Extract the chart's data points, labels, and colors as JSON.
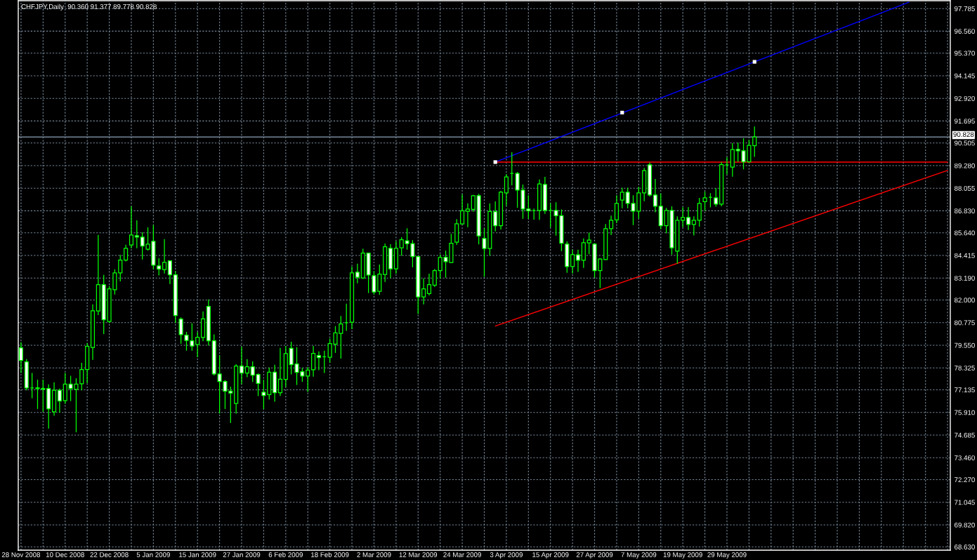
{
  "chart_data": {
    "type": "candlestick",
    "title": "CHFJPY,Daily  90.360 91.377 89.778 90.828",
    "categories": [
      "28 Nov 2008",
      null,
      null,
      null,
      null,
      null,
      null,
      null,
      "10 Dec 2008",
      null,
      null,
      null,
      null,
      null,
      null,
      null,
      "22 Dec 2008",
      null,
      null,
      null,
      null,
      null,
      null,
      null,
      "5 Jan 2009",
      null,
      null,
      null,
      null,
      null,
      null,
      null,
      "15 Jan 2009",
      null,
      null,
      null,
      null,
      null,
      null,
      null,
      "27 Jan 2009",
      null,
      null,
      null,
      null,
      null,
      null,
      null,
      "6 Feb 2009",
      null,
      null,
      null,
      null,
      null,
      null,
      null,
      "18 Feb 2009",
      null,
      null,
      null,
      null,
      null,
      null,
      null,
      "2 Mar 2009",
      null,
      null,
      null,
      null,
      null,
      null,
      null,
      "12 Mar 2009",
      null,
      null,
      null,
      null,
      null,
      null,
      null,
      "24 Mar 2009",
      null,
      null,
      null,
      null,
      null,
      null,
      null,
      "3 Apr 2009",
      null,
      null,
      null,
      null,
      null,
      null,
      null,
      "15 Apr 2009",
      null,
      null,
      null,
      null,
      null,
      null,
      null,
      "27 Apr 2009",
      null,
      null,
      null,
      null,
      null,
      null,
      null,
      "7 May 2009",
      null,
      null,
      null,
      null,
      null,
      null,
      null,
      "19 May 2009",
      null,
      null,
      null,
      null,
      null,
      null,
      null,
      "29 May 2009",
      null,
      null,
      null,
      null,
      null,
      null,
      null,
      null,
      null,
      null,
      null,
      null,
      null,
      null,
      null,
      null,
      null,
      null,
      null,
      null,
      null,
      null,
      null,
      null,
      null,
      null,
      null,
      null,
      null,
      null,
      null,
      null,
      null,
      null,
      null,
      null,
      null,
      null,
      null,
      null
    ],
    "ohlc": [
      [
        79.41,
        79.69,
        78.07,
        78.73
      ],
      [
        78.65,
        78.77,
        77.13,
        77.23
      ],
      [
        77.23,
        78.02,
        76.7,
        77.23
      ],
      [
        77.24,
        77.66,
        76.12,
        77.2
      ],
      [
        77.21,
        77.66,
        75.97,
        77.17
      ],
      [
        77.21,
        77.41,
        75.06,
        76.1
      ],
      [
        75.94,
        77.52,
        75.75,
        77.11
      ],
      [
        77.11,
        77.18,
        75.92,
        76.53
      ],
      [
        76.55,
        78.02,
        76.4,
        77.44
      ],
      [
        77.44,
        77.87,
        76.55,
        77.21
      ],
      [
        77.16,
        77.74,
        74.86,
        77.44
      ],
      [
        77.46,
        78.57,
        77.13,
        78.23
      ],
      [
        78.23,
        79.64,
        77.52,
        79.49
      ],
      [
        79.43,
        81.74,
        78.78,
        81.42
      ],
      [
        81.41,
        85.5,
        81.21,
        82.83
      ],
      [
        82.83,
        83.33,
        80.18,
        80.93
      ],
      [
        80.84,
        82.73,
        80.78,
        82.6
      ],
      [
        82.56,
        83.64,
        82.32,
        83.47
      ],
      [
        83.47,
        84.42,
        83.03,
        84.16
      ],
      [
        84.16,
        84.97,
        84.11,
        84.8
      ],
      [
        84.98,
        87.05,
        84.83,
        85.52
      ],
      [
        85.48,
        86.29,
        84.83,
        85.41
      ],
      [
        85.41,
        85.64,
        84.22,
        84.92
      ],
      [
        84.75,
        85.91,
        84.7,
        85.03
      ],
      [
        85.18,
        86.04,
        83.69,
        83.89
      ],
      [
        83.85,
        84.24,
        83.35,
        83.68
      ],
      [
        83.65,
        85.27,
        83.46,
        84.04
      ],
      [
        84.12,
        84.12,
        82.89,
        83.36
      ],
      [
        83.36,
        83.54,
        80.78,
        81.16
      ],
      [
        80.97,
        81.04,
        79.66,
        80.12
      ],
      [
        80.09,
        80.25,
        79.28,
        79.81
      ],
      [
        79.79,
        80.71,
        79.28,
        79.51
      ],
      [
        79.59,
        80.25,
        78.93,
        79.98
      ],
      [
        79.97,
        81.36,
        79.79,
        80.98
      ],
      [
        81.65,
        82.0,
        79.56,
        79.79
      ],
      [
        79.79,
        80.11,
        77.94,
        77.99
      ],
      [
        77.99,
        78.98,
        75.87,
        77.59
      ],
      [
        77.59,
        77.64,
        76.12,
        77.06
      ],
      [
        77.06,
        77.28,
        75.36,
        76.96
      ],
      [
        76.4,
        78.5,
        75.87,
        78.42
      ],
      [
        78.42,
        79.45,
        77.46,
        78.04
      ],
      [
        78.04,
        78.77,
        77.84,
        78.38
      ],
      [
        78.38,
        78.65,
        77.59,
        77.93
      ],
      [
        77.97,
        78.0,
        76.82,
        77.48
      ],
      [
        77.01,
        77.66,
        76.12,
        76.83
      ],
      [
        76.87,
        78.32,
        76.64,
        78.09
      ],
      [
        78.09,
        78.47,
        76.51,
        76.98
      ],
      [
        76.98,
        79.38,
        76.83,
        77.71
      ],
      [
        77.7,
        79.49,
        77.31,
        79.1
      ],
      [
        79.38,
        79.71,
        77.99,
        78.5
      ],
      [
        78.54,
        79.42,
        77.42,
        78.08
      ],
      [
        78.12,
        78.31,
        77.59,
        77.88
      ],
      [
        77.88,
        78.35,
        77.04,
        78.2
      ],
      [
        78.22,
        79.49,
        77.87,
        79.11
      ],
      [
        78.99,
        79.19,
        78.22,
        78.88
      ],
      [
        78.93,
        79.23,
        78.07,
        78.93
      ],
      [
        78.9,
        79.89,
        78.63,
        79.64
      ],
      [
        79.61,
        80.56,
        79.16,
        80.22
      ],
      [
        80.19,
        81.11,
        78.85,
        80.7
      ],
      [
        80.77,
        81.78,
        80.35,
        80.77
      ],
      [
        80.8,
        83.79,
        80.45,
        83.47
      ],
      [
        83.51,
        83.94,
        82.93,
        83.23
      ],
      [
        83.19,
        84.75,
        83.16,
        84.54
      ],
      [
        84.54,
        84.54,
        82.4,
        83.35
      ],
      [
        83.32,
        83.54,
        82.31,
        82.43
      ],
      [
        82.47,
        83.9,
        82.31,
        83.4
      ],
      [
        83.38,
        85.04,
        83.0,
        84.88
      ],
      [
        84.8,
        85.0,
        83.21,
        83.69
      ],
      [
        83.69,
        85.16,
        83.45,
        84.8
      ],
      [
        84.83,
        85.38,
        84.42,
        85.26
      ],
      [
        85.21,
        85.86,
        84.75,
        85.05
      ],
      [
        85.05,
        85.22,
        83.79,
        84.35
      ],
      [
        84.35,
        84.37,
        81.26,
        82.17
      ],
      [
        82.17,
        83.14,
        81.79,
        82.6
      ],
      [
        82.35,
        83.4,
        82.27,
        82.83
      ],
      [
        82.8,
        83.66,
        82.73,
        83.59
      ],
      [
        83.59,
        84.45,
        83.18,
        84.3
      ],
      [
        84.31,
        84.65,
        83.23,
        84.08
      ],
      [
        84.03,
        85.56,
        84.03,
        85.07
      ],
      [
        85.13,
        86.36,
        85.01,
        86.13
      ],
      [
        86.12,
        87.7,
        86.12,
        86.83
      ],
      [
        86.8,
        87.21,
        85.97,
        86.93
      ],
      [
        86.91,
        87.67,
        86.8,
        87.65
      ],
      [
        87.65,
        87.72,
        85.04,
        85.47
      ],
      [
        85.33,
        85.86,
        83.28,
        84.79
      ],
      [
        84.79,
        87.21,
        84.42,
        86.79
      ],
      [
        86.78,
        87.32,
        85.74,
        86.02
      ],
      [
        86.02,
        87.89,
        85.84,
        87.84
      ],
      [
        87.8,
        88.79,
        87.13,
        88.67
      ],
      [
        88.86,
        89.98,
        88.24,
        88.86
      ],
      [
        88.86,
        88.91,
        87.02,
        87.95
      ],
      [
        87.95,
        88.23,
        86.42,
        86.93
      ],
      [
        86.93,
        87.65,
        86.42,
        86.83
      ],
      [
        86.84,
        86.93,
        86.38,
        86.84
      ],
      [
        86.85,
        88.5,
        86.37,
        88.29
      ],
      [
        88.26,
        88.65,
        86.69,
        86.85
      ],
      [
        86.85,
        87.21,
        85.96,
        86.85
      ],
      [
        86.85,
        87.27,
        85.51,
        86.57
      ],
      [
        86.57,
        86.88,
        84.67,
        85.07
      ],
      [
        85.03,
        85.15,
        83.5,
        83.81
      ],
      [
        83.81,
        84.7,
        83.46,
        84.46
      ],
      [
        84.45,
        84.7,
        83.54,
        84.15
      ],
      [
        84.15,
        85.31,
        83.76,
        85.1
      ],
      [
        85.09,
        85.62,
        84.5,
        85.24
      ],
      [
        85.03,
        85.05,
        83.24,
        83.59
      ],
      [
        83.59,
        84.24,
        82.67,
        84.22
      ],
      [
        84.19,
        86.09,
        84.19,
        85.86
      ],
      [
        85.86,
        86.55,
        85.54,
        86.32
      ],
      [
        86.34,
        87.65,
        86.19,
        87.23
      ],
      [
        87.41,
        88.06,
        86.99,
        87.84
      ],
      [
        87.84,
        88.06,
        86.99,
        87.23
      ],
      [
        87.23,
        87.65,
        86.08,
        86.81
      ],
      [
        86.81,
        88.1,
        86.43,
        87.8
      ],
      [
        87.8,
        89.13,
        87.37,
        89.01
      ],
      [
        89.32,
        89.43,
        87.63,
        87.69
      ],
      [
        87.69,
        88.53,
        86.77,
        87.08
      ],
      [
        87.08,
        87.74,
        85.86,
        86.02
      ],
      [
        86.02,
        86.96,
        85.64,
        86.85
      ],
      [
        86.85,
        87.05,
        84.48,
        84.83
      ],
      [
        84.65,
        86.51,
        83.99,
        86.32
      ],
      [
        86.32,
        87.0,
        85.96,
        86.47
      ],
      [
        86.47,
        87.0,
        85.81,
        86.09
      ],
      [
        86.09,
        86.51,
        85.52,
        86.32
      ],
      [
        86.32,
        87.51,
        86.0,
        87.23
      ],
      [
        87.33,
        87.84,
        86.85,
        87.53
      ],
      [
        87.56,
        87.76,
        87.04,
        87.56
      ],
      [
        87.53,
        88.03,
        87.08,
        87.19
      ],
      [
        87.19,
        89.44,
        87.1,
        89.33
      ],
      [
        89.32,
        89.71,
        88.82,
        89.32
      ],
      [
        89.2,
        90.47,
        88.7,
        90.15
      ],
      [
        90.16,
        90.5,
        89.51,
        90.08
      ],
      [
        90.08,
        90.74,
        89.1,
        89.48
      ],
      [
        89.48,
        90.65,
        89.48,
        90.38
      ],
      [
        90.36,
        91.377,
        89.778,
        90.828
      ],
      null,
      null,
      null,
      null,
      null,
      null,
      null,
      null,
      null,
      null,
      null,
      null,
      null,
      null,
      null,
      null,
      null,
      null,
      null,
      null,
      null,
      null,
      null,
      null,
      null,
      null,
      null,
      null,
      null,
      null,
      null,
      null,
      null,
      null,
      null
    ],
    "color": "#00ff00",
    "colors": [
      "#ffffff",
      "#ffffff",
      "#00ff00",
      "#ffffff",
      "#ffffff",
      "#ffffff",
      "#000000",
      "#ffffff",
      "#000000",
      "#ffffff",
      "#000000",
      "#000000",
      "#000000",
      "#000000",
      "#000000",
      "#ffffff",
      "#000000",
      "#000000",
      "#000000",
      "#000000",
      "#000000",
      "#ffffff",
      "#ffffff",
      "#000000",
      "#ffffff",
      "#ffffff",
      "#000000",
      "#ffffff",
      "#ffffff",
      "#ffffff",
      "#ffffff",
      "#ffffff",
      "#000000",
      "#000000",
      "#ffffff",
      "#ffffff",
      "#ffffff",
      "#ffffff",
      "#ffffff",
      "#000000",
      "#ffffff",
      "#000000",
      "#ffffff",
      "#ffffff",
      "#ffffff",
      "#000000",
      "#ffffff",
      "#000000",
      "#000000",
      "#ffffff",
      "#ffffff",
      "#ffffff",
      "#000000",
      "#000000",
      "#ffffff",
      "#00ff00",
      "#000000",
      "#000000",
      "#000000",
      "#00ff00",
      "#000000",
      "#ffffff",
      "#000000",
      "#ffffff",
      "#ffffff",
      "#000000",
      "#000000",
      "#ffffff",
      "#000000",
      "#000000",
      "#ffffff",
      "#ffffff",
      "#ffffff",
      "#000000",
      "#000000",
      "#000000",
      "#000000",
      "#ffffff",
      "#000000",
      "#000000",
      "#000000",
      "#000000",
      "#000000",
      "#ffffff",
      "#ffffff",
      "#000000",
      "#ffffff",
      "#000000",
      "#000000",
      "#00ff00",
      "#ffffff",
      "#ffffff",
      "#ffffff",
      "#00ff00",
      "#000000",
      "#ffffff",
      "#00ff00",
      "#ffffff",
      "#ffffff",
      "#ffffff",
      "#000000",
      "#ffffff",
      "#000000",
      "#000000",
      "#ffffff",
      "#000000",
      "#000000",
      "#000000",
      "#000000",
      "#000000",
      "#ffffff",
      "#ffffff",
      "#000000",
      "#000000",
      "#ffffff",
      "#ffffff",
      "#ffffff",
      "#000000",
      "#ffffff",
      "#000000",
      "#000000",
      "#ffffff",
      "#000000",
      "#000000",
      "#000000",
      "#00ff00",
      "#ffffff",
      "#000000",
      "#00ff00",
      "#000000",
      "#ffffff",
      "#ffffff",
      "#000000",
      "#000000",
      null,
      null,
      null,
      null,
      null,
      null,
      null,
      null,
      null,
      null,
      null,
      null,
      null,
      null,
      null,
      null,
      null,
      null,
      null,
      null,
      null,
      null,
      null,
      null,
      null,
      null,
      null,
      null,
      null,
      null,
      null,
      null,
      null,
      null,
      null
    ],
    "series": [
      {
        "type": "line",
        "color": "#0000ff",
        "values": [
          null,
          null,
          null,
          null,
          null,
          null,
          null,
          null,
          null,
          null,
          null,
          null,
          null,
          null,
          null,
          null,
          null,
          null,
          null,
          null,
          null,
          null,
          null,
          null,
          null,
          null,
          null,
          null,
          null,
          null,
          null,
          null,
          null,
          null,
          null,
          null,
          null,
          null,
          null,
          null,
          null,
          null,
          null,
          null,
          null,
          null,
          null,
          null,
          null,
          null,
          null,
          null,
          null,
          null,
          null,
          null,
          null,
          null,
          null,
          null,
          null,
          null,
          null,
          null,
          null,
          null,
          null,
          null,
          null,
          null,
          null,
          null,
          null,
          null,
          null,
          null,
          null,
          null,
          null,
          null,
          null,
          null,
          null,
          null,
          null,
          null,
          89.47,
          null,
          null,
          null,
          null,
          null,
          null,
          null,
          null,
          null,
          null,
          null,
          null,
          null,
          null,
          null,
          null,
          null,
          null,
          null,
          null,
          null,
          null,
          null,
          null,
          null,
          null,
          null,
          null,
          null,
          null,
          null,
          null,
          null,
          null,
          null,
          null,
          null,
          null,
          null,
          null,
          null,
          null,
          null,
          null,
          null,
          null,
          94.9,
          null,
          null,
          null,
          null,
          null,
          null,
          null,
          null,
          null,
          null,
          null,
          null,
          null,
          null,
          null,
          null,
          null,
          null,
          null,
          null,
          null,
          null,
          null,
          null,
          null,
          null,
          null,
          98.13,
          null,
          null,
          null,
          null,
          null,
          null,
          null
        ]
      },
      {
        "type": "line",
        "color": "#ff0000",
        "values": [
          null,
          null,
          null,
          null,
          null,
          null,
          null,
          null,
          null,
          null,
          null,
          null,
          null,
          null,
          null,
          null,
          null,
          null,
          null,
          null,
          null,
          null,
          null,
          null,
          null,
          null,
          null,
          null,
          null,
          null,
          null,
          null,
          null,
          null,
          null,
          null,
          null,
          null,
          null,
          null,
          null,
          null,
          null,
          null,
          null,
          null,
          null,
          null,
          null,
          null,
          null,
          null,
          null,
          null,
          null,
          null,
          null,
          null,
          null,
          null,
          null,
          null,
          null,
          null,
          null,
          null,
          null,
          null,
          null,
          null,
          null,
          null,
          null,
          null,
          null,
          null,
          null,
          null,
          null,
          null,
          null,
          null,
          null,
          null,
          null,
          null,
          89.47,
          null,
          null,
          null,
          null,
          null,
          null,
          null,
          null,
          null,
          null,
          null,
          null,
          null,
          null,
          null,
          null,
          null,
          null,
          null,
          null,
          null,
          null,
          null,
          null,
          null,
          null,
          null,
          null,
          null,
          null,
          null,
          null,
          null,
          null,
          null,
          null,
          null,
          null,
          null,
          null,
          null,
          null,
          null,
          null,
          null,
          null,
          null,
          null,
          null,
          null,
          null,
          null,
          null,
          null,
          null,
          null,
          null,
          null,
          null,
          null,
          null,
          null,
          null,
          null,
          null,
          null,
          null,
          null,
          null,
          null,
          null,
          null,
          null,
          null,
          null,
          null,
          null,
          null,
          null,
          null,
          null,
          89.47
        ]
      },
      {
        "type": "line",
        "color": "#ff0000",
        "values": [
          null,
          null,
          null,
          null,
          null,
          null,
          null,
          null,
          null,
          null,
          null,
          null,
          null,
          null,
          null,
          null,
          null,
          null,
          null,
          null,
          null,
          null,
          null,
          null,
          null,
          null,
          null,
          null,
          null,
          null,
          null,
          null,
          null,
          null,
          null,
          null,
          null,
          null,
          null,
          null,
          null,
          null,
          null,
          null,
          null,
          null,
          null,
          null,
          null,
          null,
          null,
          null,
          null,
          null,
          null,
          null,
          null,
          null,
          null,
          null,
          null,
          null,
          null,
          null,
          null,
          null,
          null,
          null,
          null,
          null,
          null,
          null,
          null,
          null,
          null,
          null,
          null,
          null,
          null,
          null,
          null,
          null,
          null,
          null,
          null,
          null,
          80.59,
          null,
          null,
          null,
          null,
          null,
          null,
          null,
          null,
          null,
          null,
          null,
          null,
          null,
          null,
          null,
          null,
          null,
          null,
          null,
          null,
          null,
          null,
          null,
          null,
          null,
          null,
          null,
          null,
          null,
          null,
          null,
          null,
          null,
          null,
          null,
          null,
          null,
          null,
          null,
          null,
          null,
          null,
          null,
          null,
          null,
          null,
          null,
          null,
          null,
          null,
          null,
          null,
          null,
          null,
          null,
          null,
          null,
          null,
          null,
          null,
          null,
          null,
          null,
          null,
          null,
          null,
          null,
          null,
          null,
          null,
          null,
          null,
          null,
          null,
          null,
          null,
          null,
          null,
          null,
          null,
          null,
          89.02
        ]
      },
      {
        "type": "scatter",
        "color": "#ffffff",
        "marker": "square",
        "values": [
          null,
          null,
          null,
          null,
          null,
          null,
          null,
          null,
          null,
          null,
          null,
          null,
          null,
          null,
          null,
          null,
          null,
          null,
          null,
          null,
          null,
          null,
          null,
          null,
          null,
          null,
          null,
          null,
          null,
          null,
          null,
          null,
          null,
          null,
          null,
          null,
          null,
          null,
          null,
          null,
          null,
          null,
          null,
          null,
          null,
          null,
          null,
          null,
          null,
          null,
          null,
          null,
          null,
          null,
          null,
          null,
          null,
          null,
          null,
          null,
          null,
          null,
          null,
          null,
          null,
          null,
          null,
          null,
          null,
          null,
          null,
          null,
          null,
          null,
          null,
          null,
          null,
          null,
          null,
          null,
          null,
          null,
          null,
          null,
          null,
          null,
          89.47,
          null,
          null,
          null,
          null,
          null,
          null,
          null,
          null,
          null,
          null,
          null,
          null,
          null,
          null,
          null,
          null,
          null,
          null,
          null,
          null,
          null,
          null,
          92.15,
          null,
          null,
          null,
          null,
          null,
          null,
          null,
          null,
          null,
          null,
          null,
          null,
          null,
          null,
          null,
          null,
          null,
          null,
          null,
          null,
          null,
          null,
          null,
          94.9,
          null,
          null,
          null,
          null,
          null,
          null,
          null,
          null,
          null,
          null,
          null,
          null,
          null,
          null,
          null,
          null,
          null,
          null,
          null,
          null,
          null,
          null,
          null,
          null,
          null,
          null,
          null,
          null,
          null,
          null,
          null,
          null,
          null,
          null,
          null
        ]
      }
    ],
    "ref_lines": [
      {
        "axis": "y",
        "value": 90.828,
        "label": "90.828",
        "color": "#778899"
      }
    ],
    "ylim": [
      68.45,
      98.21
    ],
    "yticks": [
      97.785,
      {
        "value": 96.56,
        "label": "96.560"
      },
      {
        "value": 95.37,
        "label": "95.370"
      },
      94.145,
      {
        "value": 92.92,
        "label": "92.920"
      },
      91.695,
      90.505,
      {
        "value": 89.28,
        "label": "89.280"
      },
      88.055,
      {
        "value": 86.83,
        "label": "86.830"
      },
      {
        "value": 85.64,
        "label": "85.640"
      },
      84.415,
      {
        "value": 83.19,
        "label": "83.190"
      },
      {
        "value": 82.0,
        "label": "82.000"
      },
      80.775,
      {
        "value": 79.55,
        "label": "79.550"
      },
      78.325,
      77.135,
      {
        "value": 75.91,
        "label": "75.910"
      },
      74.685,
      {
        "value": 73.46,
        "label": "73.460"
      },
      {
        "value": 72.27,
        "label": "72.270"
      },
      71.045,
      {
        "value": 69.82,
        "label": "69.820"
      },
      {
        "value": 68.63,
        "label": "68.630"
      }
    ],
    "grid": true
  }
}
